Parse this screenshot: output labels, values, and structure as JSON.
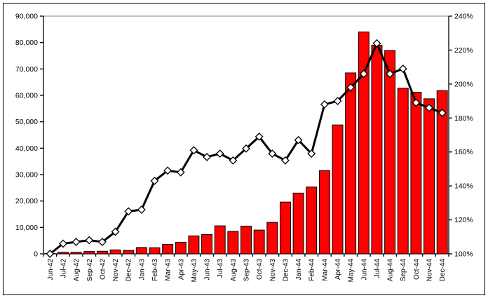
{
  "chart_data": {
    "type": "bar",
    "subtype": "combo-bar-line",
    "title": "",
    "xlabel": "",
    "ylabel_left": "",
    "ylabel_right": "",
    "legend": "none",
    "grid": "top-border-line-only",
    "categories": [
      "Jun-42",
      "Jul-42",
      "Aug-42",
      "Sep-42",
      "Oct-42",
      "Nov-42",
      "Dec-42",
      "Jan-43",
      "Feb-43",
      "Mar-43",
      "Apr-43",
      "May-43",
      "Jun-43",
      "Jul-43",
      "Aug-43",
      "Sep-43",
      "Oct-43",
      "Nov-43",
      "Dec-43",
      "Jan-44",
      "Feb-44",
      "Mar-44",
      "Apr-44",
      "May-44",
      "Jun-44",
      "Jul-44",
      "Aug-44",
      "Sep-44",
      "Oct-44",
      "Nov-44",
      "Dec-44"
    ],
    "series": [
      {
        "name": "monthly-total-bars",
        "type": "bar",
        "axis": "left",
        "color": "#FF0000",
        "outline_color": "#000000",
        "values": [
          100,
          600,
          600,
          900,
          1000,
          1500,
          1300,
          2400,
          2300,
          3600,
          4400,
          6800,
          7300,
          10600,
          8500,
          10500,
          9000,
          11900,
          19600,
          23000,
          25300,
          31500,
          48800,
          68500,
          84000,
          79000,
          77000,
          62700,
          61200,
          58700,
          61800
        ]
      },
      {
        "name": "percent-index-line",
        "type": "line",
        "axis": "right",
        "color": "#000000",
        "marker": "diamond",
        "marker_fill": "#FFFFFF",
        "marker_outline": "#000000",
        "values": [
          100,
          106,
          107,
          108,
          107,
          113,
          125,
          126,
          143,
          149,
          148,
          161,
          157,
          159,
          155,
          162,
          169,
          159,
          155,
          167,
          159,
          188,
          190,
          198,
          206,
          224,
          206,
          209,
          189,
          186,
          183
        ]
      }
    ],
    "left_axis": {
      "min": 0,
      "max": 90000,
      "tick_step": 10000,
      "tick_labels": [
        "0",
        "10,000",
        "20,000",
        "30,000",
        "40,000",
        "50,000",
        "60,000",
        "70,000",
        "80,000",
        "90,000"
      ]
    },
    "right_axis": {
      "min": 100,
      "max": 240,
      "tick_step": 20,
      "tick_labels": [
        "100%",
        "120%",
        "140%",
        "160%",
        "180%",
        "200%",
        "220%",
        "240%"
      ]
    },
    "colors": {
      "bar_fill": "#FF0000",
      "line_stroke": "#000000",
      "marker_fill": "#FFFFFF",
      "axis_stroke": "#000000",
      "top_gridline": "#999999",
      "outer_border": "#000000",
      "background": "#FFFFFF"
    }
  }
}
